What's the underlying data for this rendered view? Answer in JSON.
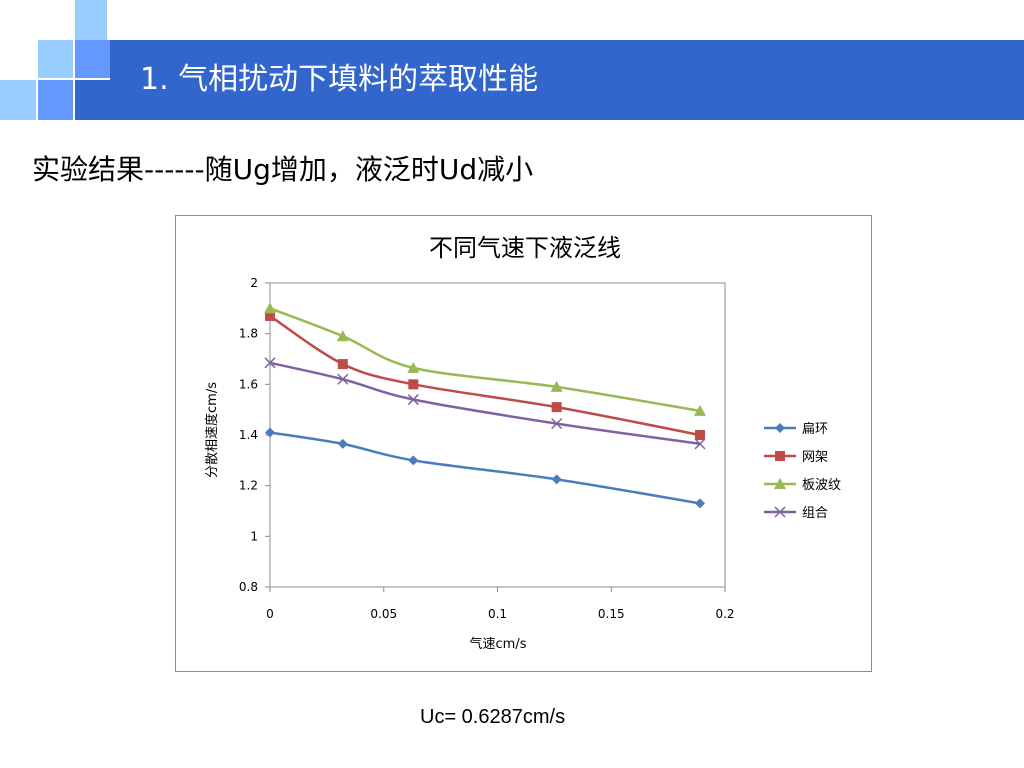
{
  "slide": {
    "title": "1. 气相扰动下填料的萃取性能",
    "subtitle": "实验结果------随Ug增加，液泛时Ud减小",
    "footnote": "Uc= 0.6287cm/s"
  },
  "colors": {
    "banner": "#3366cc",
    "accent_light": "#99ccff",
    "accent_mid": "#6699ff",
    "series": [
      "#4a7ebb",
      "#be4b48",
      "#98b954",
      "#7e649e"
    ]
  },
  "chart_data": {
    "type": "line",
    "title": "不同气速下液泛线",
    "xlabel": "气速cm/s",
    "ylabel": "分散相速度cm/s",
    "xlim": [
      0,
      0.2
    ],
    "ylim": [
      0.8,
      2
    ],
    "xticks": [
      0,
      0.05,
      0.1,
      0.15,
      0.2
    ],
    "xtick_labels": [
      "0",
      "0.05",
      "0.1",
      "0.15",
      "0.2"
    ],
    "yticks": [
      0.8,
      1,
      1.2,
      1.4,
      1.6,
      1.8,
      2
    ],
    "ytick_labels": [
      "0.8",
      "1",
      "1.2",
      "1.4",
      "1.6",
      "1.8",
      "2"
    ],
    "grid": false,
    "legend_position": "right",
    "series": [
      {
        "name": "扁环",
        "marker": "diamond",
        "x": [
          0,
          0.032,
          0.063,
          0.126,
          0.189
        ],
        "y": [
          1.41,
          1.365,
          1.3,
          1.225,
          1.13
        ]
      },
      {
        "name": "网架",
        "marker": "square",
        "x": [
          0,
          0.032,
          0.063,
          0.126,
          0.189
        ],
        "y": [
          1.87,
          1.68,
          1.6,
          1.51,
          1.4
        ]
      },
      {
        "name": "板波纹",
        "marker": "triangle",
        "x": [
          0,
          0.032,
          0.063,
          0.126,
          0.189
        ],
        "y": [
          1.9,
          1.79,
          1.665,
          1.59,
          1.495
        ]
      },
      {
        "name": "组合",
        "marker": "cross",
        "x": [
          0,
          0.032,
          0.063,
          0.126,
          0.189
        ],
        "y": [
          1.685,
          1.62,
          1.54,
          1.445,
          1.365
        ]
      }
    ]
  }
}
